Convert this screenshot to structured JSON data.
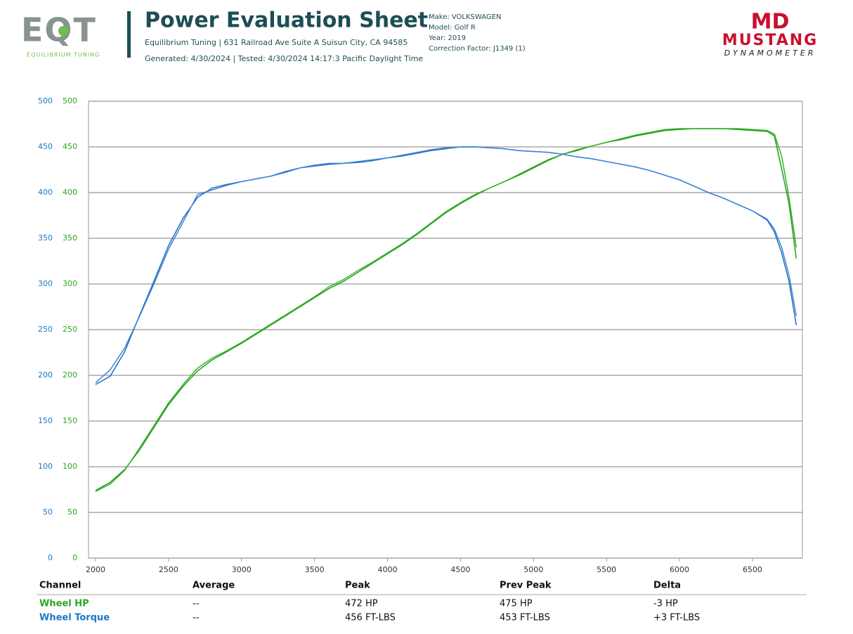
{
  "header": {
    "logo_left": "EQT",
    "logo_left_sub": "EQUILIBRIUM TUNING",
    "title": "Power Evaluation Sheet",
    "address": "Equilibrium Tuning | 631 Railroad Ave Suite A Suisun City, CA 94585",
    "generated": "Generated: 4/30/2024 | Tested: 4/30/2024 14:17:3 Pacific Daylight Time",
    "make": "Make: VOLKSWAGEN",
    "model": "Model: Golf R",
    "year": "Year: 2019",
    "correction": "Correction Factor: J1349 (1)",
    "logo_right_mark": "MD",
    "logo_right": "MUSTANG",
    "logo_right_sub": "DYNAMOMETER"
  },
  "chart_data": {
    "type": "line",
    "x": [
      2000,
      2100,
      2200,
      2300,
      2400,
      2500,
      2600,
      2700,
      2800,
      2900,
      3000,
      3100,
      3200,
      3300,
      3400,
      3500,
      3600,
      3700,
      3800,
      3900,
      4000,
      4100,
      4200,
      4300,
      4400,
      4500,
      4600,
      4700,
      4800,
      4900,
      5000,
      5100,
      5200,
      5300,
      5400,
      5500,
      5600,
      5700,
      5800,
      5900,
      6000,
      6100,
      6200,
      6300,
      6400,
      6500,
      6600,
      6650,
      6700,
      6750,
      6800
    ],
    "series": [
      {
        "color": "#1f9e1a",
        "axis": "y2",
        "values": [
          74,
          83,
          97,
          118,
          143,
          168,
          188,
          205,
          217,
          226,
          235,
          245,
          255,
          265,
          275,
          285,
          295,
          303,
          313,
          323,
          333,
          343,
          354,
          366,
          378,
          388,
          397,
          405,
          412,
          419,
          427,
          435,
          442,
          446,
          451,
          455,
          458,
          462,
          465,
          468,
          469,
          470,
          470,
          470,
          469,
          468,
          467,
          462,
          426,
          388,
          328
        ]
      },
      {
        "color": "#37b22c",
        "axis": "y2",
        "values": [
          73,
          81,
          96,
          120,
          145,
          170,
          190,
          208,
          219,
          227,
          236,
          246,
          256,
          266,
          276,
          286,
          297,
          305,
          315,
          324,
          334,
          344,
          355,
          367,
          379,
          389,
          398,
          405,
          412,
          420,
          428,
          436,
          442,
          447,
          451,
          455,
          459,
          463,
          466,
          469,
          470,
          470,
          470,
          470,
          470,
          469,
          468,
          464,
          440,
          395,
          340
        ]
      },
      {
        "color": "#1d6cc4",
        "values": [
          190,
          199,
          226,
          265,
          303,
          342,
          372,
          395,
          405,
          409,
          412,
          415,
          418,
          423,
          427,
          429,
          431,
          432,
          433,
          435,
          438,
          440,
          443,
          446,
          448,
          450,
          450,
          449,
          448,
          446,
          445,
          444,
          442,
          439,
          437,
          434,
          431,
          428,
          424,
          419,
          414,
          407,
          400,
          394,
          387,
          380,
          370,
          357,
          334,
          303,
          255
        ]
      },
      {
        "color": "#3f86d6",
        "values": [
          192,
          206,
          230,
          264,
          300,
          338,
          368,
          398,
          403,
          408,
          412,
          415,
          418,
          422,
          427,
          430,
          432,
          432,
          434,
          436,
          438,
          441,
          444,
          447,
          449,
          450,
          450,
          449,
          448,
          446,
          445,
          444,
          442,
          439,
          437,
          434,
          431,
          428,
          424,
          419,
          414,
          407,
          400,
          394,
          387,
          380,
          371,
          360,
          340,
          310,
          265
        ]
      }
    ],
    "xlim": [
      1952,
      6842
    ],
    "xticks": [
      2000,
      2500,
      3000,
      3500,
      4000,
      4500,
      5000,
      5500,
      6000,
      6500
    ],
    "ylim": [
      0,
      500
    ],
    "yticks": [
      0,
      50,
      100,
      150,
      200,
      250,
      300,
      350,
      400,
      450,
      500
    ],
    "ycolor": "#1d78c8",
    "y2lim": [
      0,
      500
    ],
    "y2ticks": [
      0,
      50,
      100,
      150,
      200,
      250,
      300,
      350,
      400,
      450,
      500
    ],
    "y2color": "#2aa820",
    "grid": true
  },
  "table": {
    "columns": [
      "Channel",
      "Average",
      "Peak",
      "Prev Peak",
      "Delta"
    ],
    "rows": [
      [
        "Wheel HP",
        "--",
        "472 HP",
        "475 HP",
        "-3 HP"
      ],
      [
        "Wheel Torque",
        "--",
        "456 FT-LBS",
        "453 FT-LBS",
        "+3 FT-LBS"
      ]
    ],
    "row_colors": [
      "#2aa820",
      "#1d78c8"
    ]
  }
}
